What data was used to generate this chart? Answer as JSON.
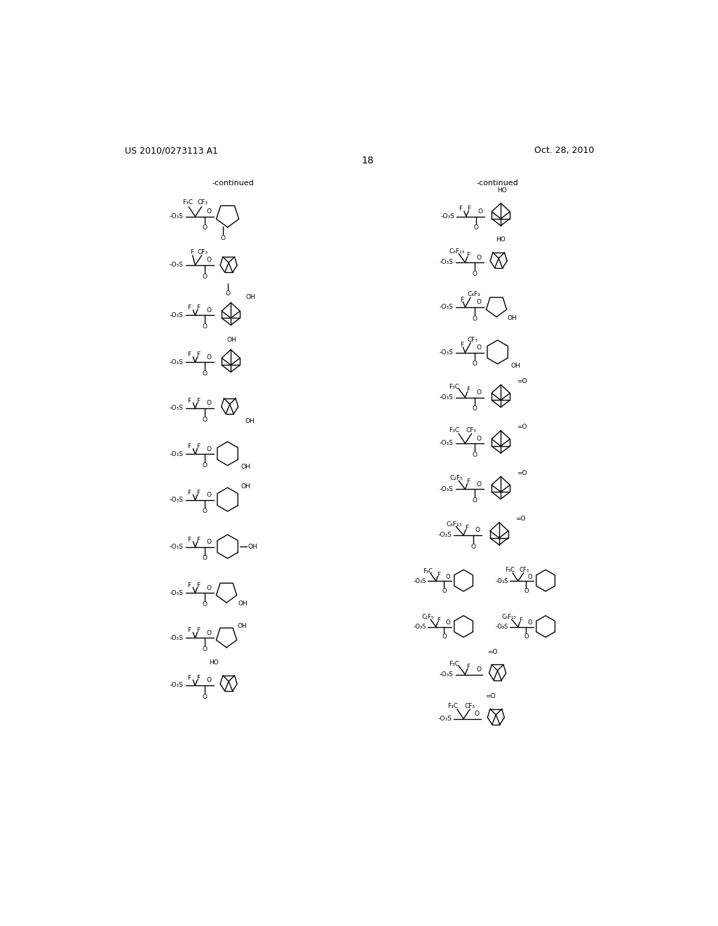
{
  "patent_number": "US 2010/0273113 A1",
  "date": "Oct. 28, 2010",
  "page_number": "18",
  "continued_label": "-continued",
  "background_color": "#ffffff",
  "figsize": [
    10.24,
    13.2
  ],
  "dpi": 100
}
